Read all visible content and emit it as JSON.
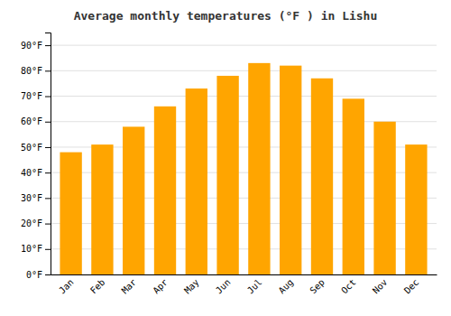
{
  "chart_data": {
    "type": "bar",
    "title": "Average monthly temperatures (°F ) in Lishu",
    "categories": [
      "Jan",
      "Feb",
      "Mar",
      "Apr",
      "May",
      "Jun",
      "Jul",
      "Aug",
      "Sep",
      "Oct",
      "Nov",
      "Dec"
    ],
    "values": [
      48,
      51,
      58,
      66,
      73,
      78,
      83,
      82,
      77,
      69,
      60,
      51
    ],
    "color": "#FFA500",
    "ylim": [
      0,
      95
    ],
    "yticks": [
      {
        "value": 0,
        "label": "0°F"
      },
      {
        "value": 10,
        "label": "10°F"
      },
      {
        "value": 20,
        "label": "20°F"
      },
      {
        "value": 30,
        "label": "30°F"
      },
      {
        "value": 40,
        "label": "40°F"
      },
      {
        "value": 50,
        "label": "50°F"
      },
      {
        "value": 60,
        "label": "60°F"
      },
      {
        "value": 70,
        "label": "70°F"
      },
      {
        "value": 80,
        "label": "80°F"
      },
      {
        "value": 90,
        "label": "90°F"
      }
    ],
    "grid": true
  }
}
